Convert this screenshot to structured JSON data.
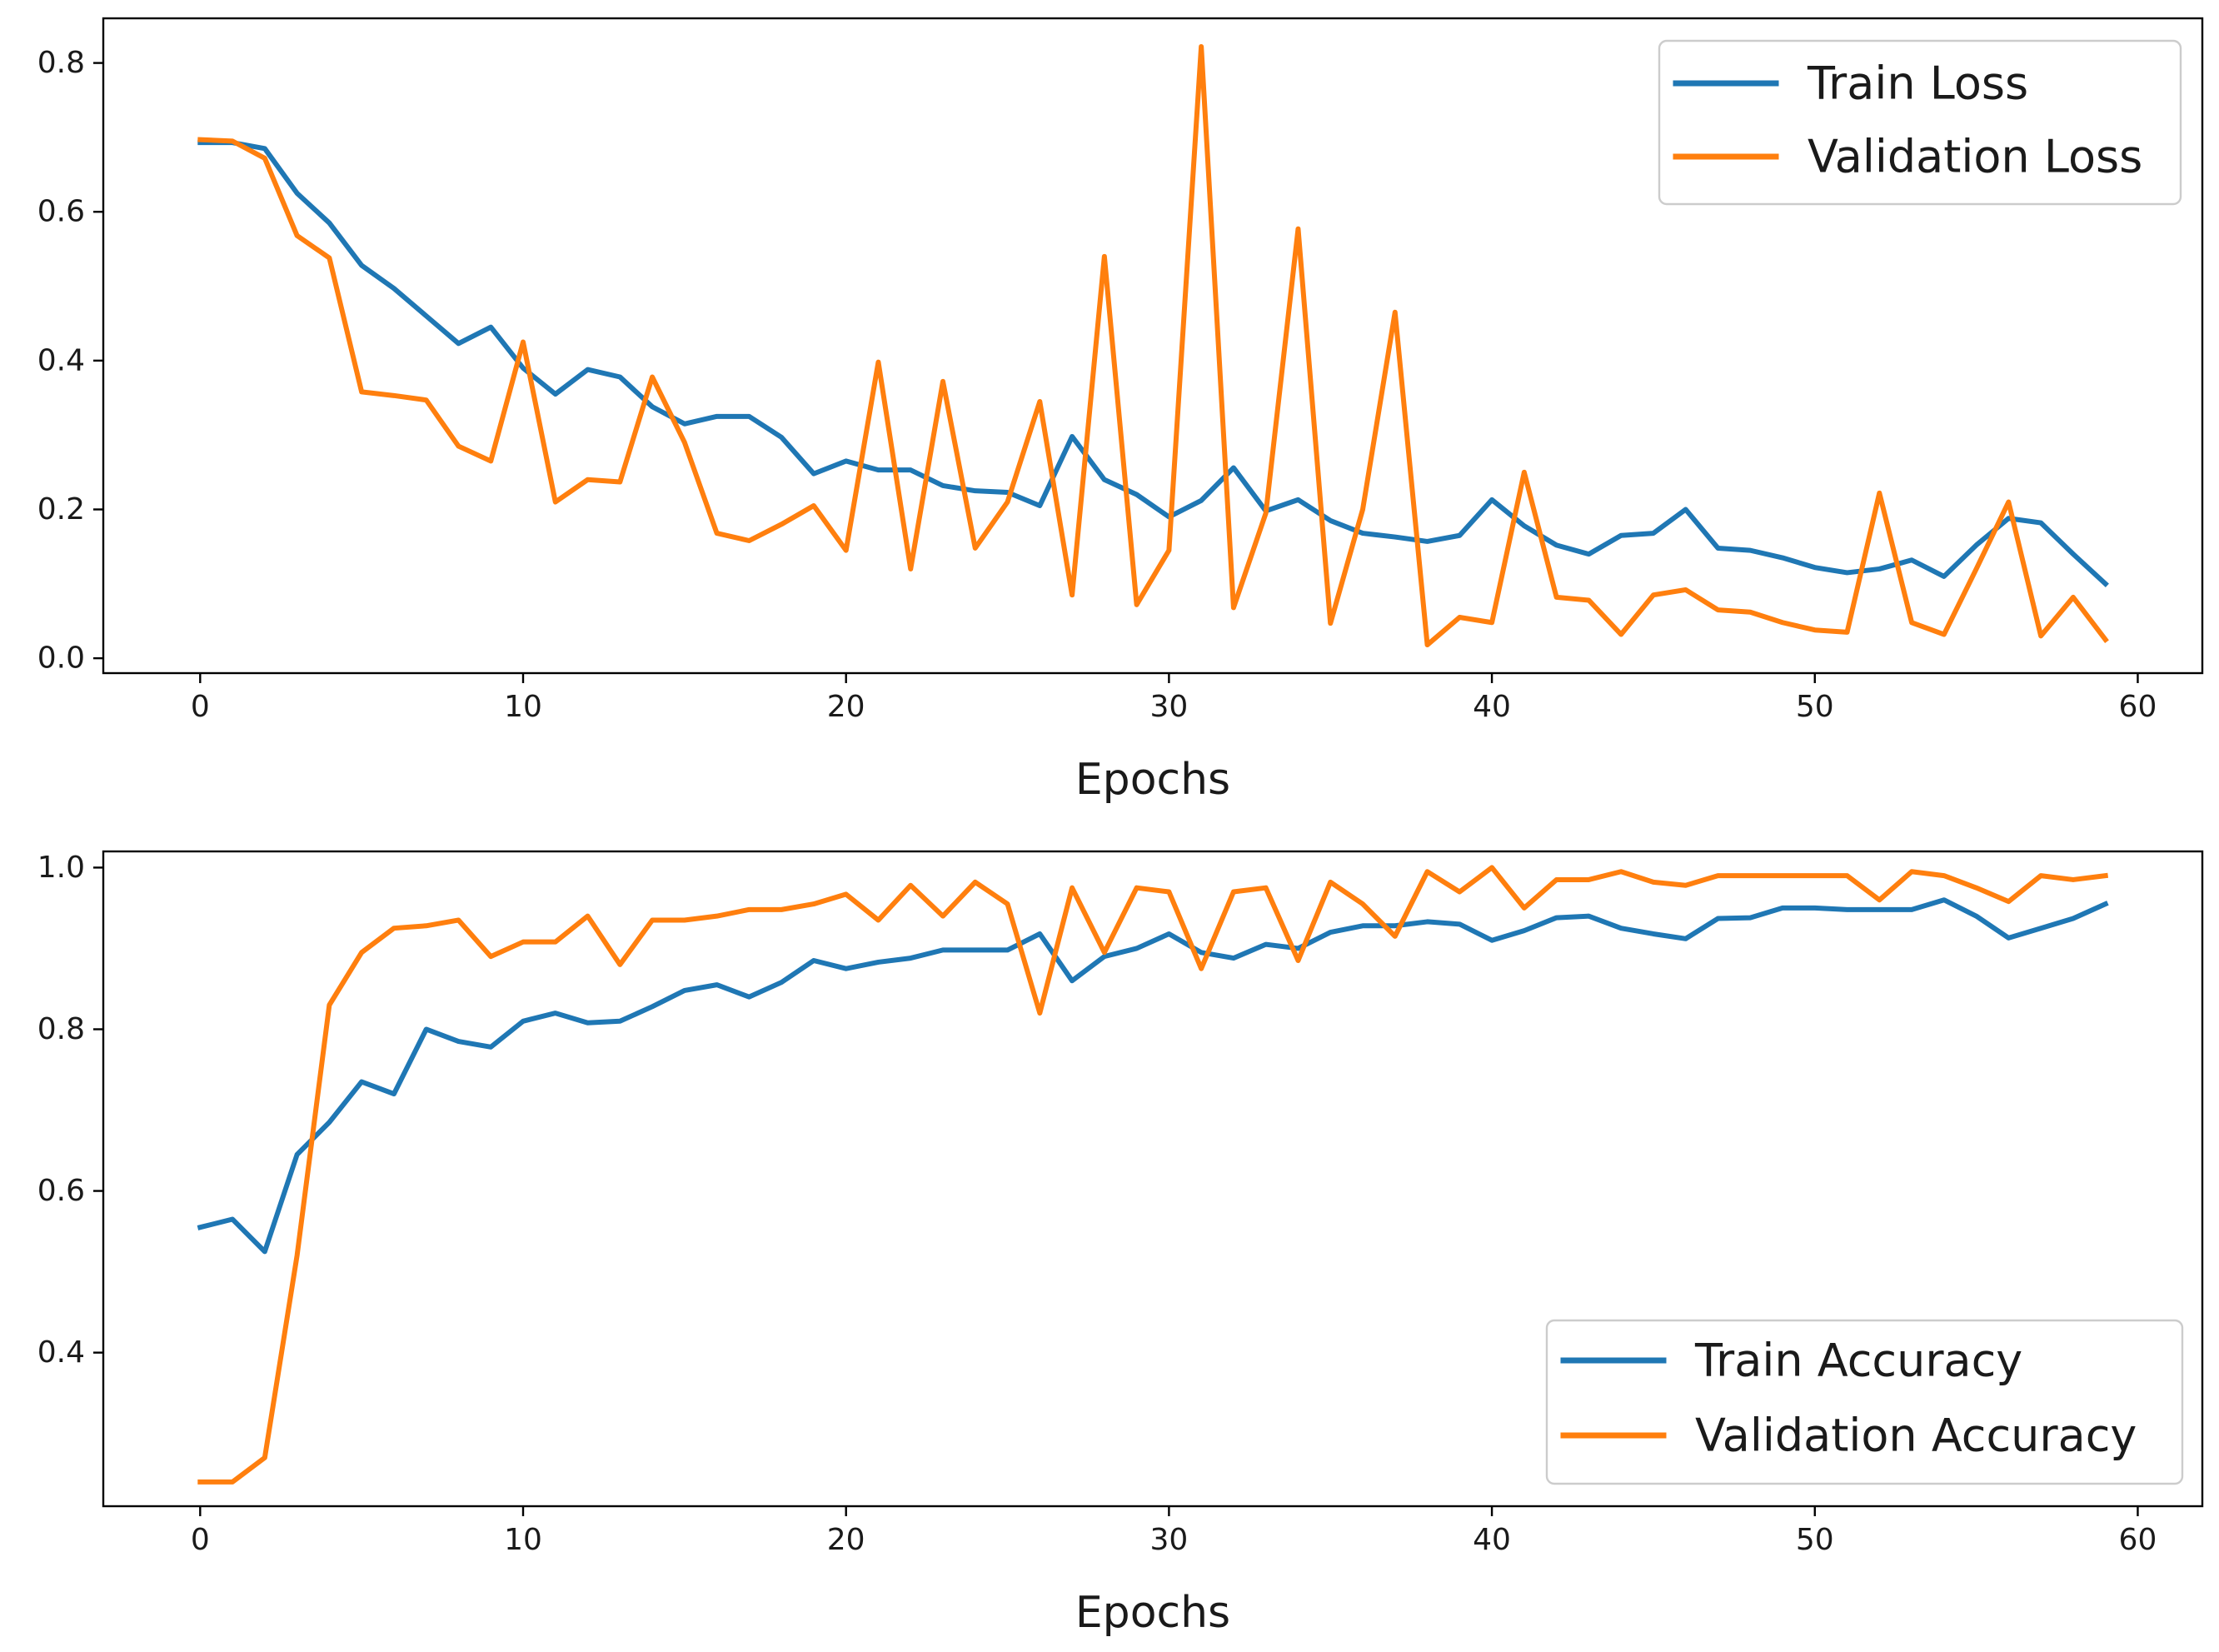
{
  "chart_data": [
    {
      "type": "line",
      "title": "",
      "xlabel": "Epochs",
      "ylabel": "",
      "xlim": [
        -3,
        62
      ],
      "ylim": [
        -0.02,
        0.86
      ],
      "xticks": [
        0,
        10,
        20,
        30,
        40,
        50,
        60
      ],
      "xtick_labels": [
        "0",
        "10",
        "20",
        "30",
        "40",
        "50",
        "60"
      ],
      "yticks": [
        0.0,
        0.2,
        0.4,
        0.6,
        0.8
      ],
      "ytick_labels": [
        "0.0",
        "0.2",
        "0.4",
        "0.6",
        "0.8"
      ],
      "grid": false,
      "legend_position": "top-right",
      "x": [
        0,
        1,
        2,
        3,
        4,
        5,
        6,
        7,
        8,
        9,
        10,
        11,
        12,
        13,
        14,
        15,
        16,
        17,
        18,
        19,
        20,
        21,
        22,
        23,
        24,
        25,
        26,
        27,
        28,
        29,
        30,
        31,
        32,
        33,
        34,
        35,
        36,
        37,
        38,
        39,
        40,
        41,
        42,
        43,
        44,
        45,
        46,
        47,
        48,
        49,
        50,
        51,
        52,
        53,
        54,
        55,
        56,
        57,
        58,
        59
      ],
      "series": [
        {
          "name": "Train Loss",
          "color": "#1f77b4",
          "values": [
            0.693,
            0.693,
            0.685,
            0.625,
            0.585,
            0.528,
            0.497,
            0.46,
            0.423,
            0.445,
            0.39,
            0.355,
            0.388,
            0.378,
            0.338,
            0.315,
            0.325,
            0.325,
            0.297,
            0.248,
            0.265,
            0.253,
            0.253,
            0.232,
            0.225,
            0.223,
            0.205,
            0.298,
            0.24,
            0.22,
            0.19,
            0.212,
            0.256,
            0.198,
            0.213,
            0.185,
            0.168,
            0.163,
            0.157,
            0.165,
            0.213,
            0.178,
            0.152,
            0.14,
            0.165,
            0.168,
            0.2,
            0.148,
            0.145,
            0.135,
            0.122,
            0.115,
            0.12,
            0.132,
            0.11,
            0.152,
            0.188,
            0.182,
            0.14,
            0.1
          ]
        },
        {
          "name": "Validation Loss",
          "color": "#ff7f0e",
          "values": [
            0.697,
            0.695,
            0.672,
            0.568,
            0.538,
            0.358,
            0.353,
            0.347,
            0.285,
            0.265,
            0.425,
            0.21,
            0.24,
            0.237,
            0.378,
            0.29,
            0.168,
            0.158,
            0.18,
            0.205,
            0.145,
            0.398,
            0.12,
            0.372,
            0.148,
            0.21,
            0.345,
            0.085,
            0.54,
            0.072,
            0.145,
            0.822,
            0.068,
            0.195,
            0.577,
            0.047,
            0.2,
            0.465,
            0.018,
            0.055,
            0.048,
            0.25,
            0.082,
            0.078,
            0.032,
            0.085,
            0.092,
            0.065,
            0.062,
            0.048,
            0.038,
            0.035,
            0.222,
            0.048,
            0.032,
            0.12,
            0.21,
            0.03,
            0.082,
            0.025
          ]
        }
      ]
    },
    {
      "type": "line",
      "title": "",
      "xlabel": "Epochs",
      "ylabel": "",
      "xlim": [
        -3,
        62
      ],
      "ylim": [
        0.21,
        1.02
      ],
      "xticks": [
        0,
        10,
        20,
        30,
        40,
        50,
        60
      ],
      "xtick_labels": [
        "0",
        "10",
        "20",
        "30",
        "40",
        "50",
        "60"
      ],
      "yticks": [
        0.4,
        0.6,
        0.8,
        1.0
      ],
      "ytick_labels": [
        "0.4",
        "0.6",
        "0.8",
        "1.0"
      ],
      "grid": false,
      "legend_position": "bottom-right",
      "x": [
        0,
        1,
        2,
        3,
        4,
        5,
        6,
        7,
        8,
        9,
        10,
        11,
        12,
        13,
        14,
        15,
        16,
        17,
        18,
        19,
        20,
        21,
        22,
        23,
        24,
        25,
        26,
        27,
        28,
        29,
        30,
        31,
        32,
        33,
        34,
        35,
        36,
        37,
        38,
        39,
        40,
        41,
        42,
        43,
        44,
        45,
        46,
        47,
        48,
        49,
        50,
        51,
        52,
        53,
        54,
        55,
        56,
        57,
        58,
        59
      ],
      "series": [
        {
          "name": "Train Accuracy",
          "color": "#1f77b4",
          "values": [
            0.555,
            0.565,
            0.525,
            0.645,
            0.685,
            0.735,
            0.72,
            0.8,
            0.785,
            0.778,
            0.81,
            0.82,
            0.808,
            0.81,
            0.828,
            0.848,
            0.855,
            0.84,
            0.858,
            0.885,
            0.875,
            0.883,
            0.888,
            0.898,
            0.898,
            0.898,
            0.918,
            0.86,
            0.89,
            0.9,
            0.918,
            0.895,
            0.888,
            0.905,
            0.9,
            0.92,
            0.928,
            0.928,
            0.933,
            0.93,
            0.91,
            0.922,
            0.938,
            0.94,
            0.925,
            0.918,
            0.912,
            0.937,
            0.938,
            0.95,
            0.95,
            0.948,
            0.948,
            0.948,
            0.96,
            0.94,
            0.913,
            0.925,
            0.937,
            0.955
          ]
        },
        {
          "name": "Validation Accuracy",
          "color": "#ff7f0e",
          "values": [
            0.24,
            0.24,
            0.27,
            0.52,
            0.83,
            0.895,
            0.925,
            0.928,
            0.935,
            0.89,
            0.908,
            0.908,
            0.94,
            0.88,
            0.935,
            0.935,
            0.94,
            0.948,
            0.948,
            0.955,
            0.967,
            0.935,
            0.978,
            0.94,
            0.982,
            0.955,
            0.82,
            0.975,
            0.895,
            0.975,
            0.97,
            0.875,
            0.97,
            0.975,
            0.885,
            0.982,
            0.955,
            0.915,
            0.995,
            0.97,
            1.0,
            0.95,
            0.985,
            0.985,
            0.995,
            0.982,
            0.978,
            0.99,
            0.99,
            0.99,
            0.99,
            0.99,
            0.96,
            0.995,
            0.99,
            0.975,
            0.958,
            0.99,
            0.985,
            0.99
          ]
        }
      ]
    }
  ]
}
